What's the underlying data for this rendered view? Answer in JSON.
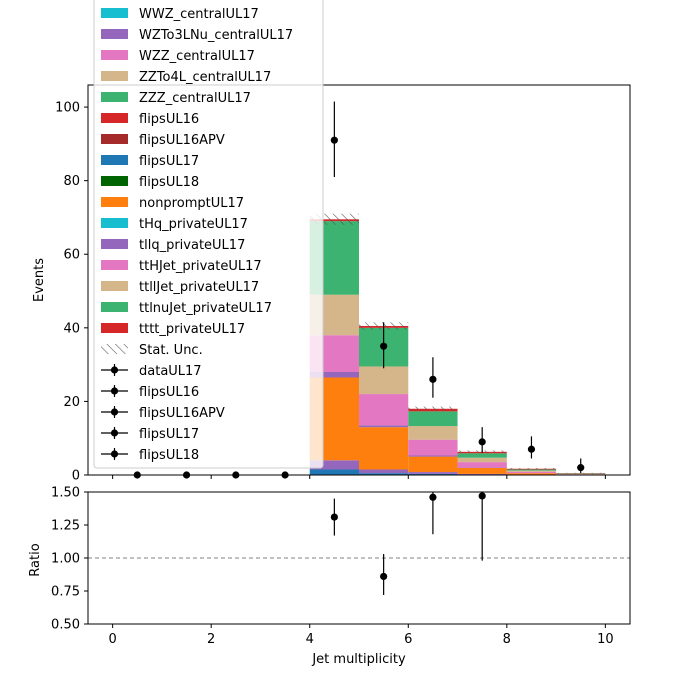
{
  "chart_data": [
    {
      "type": "bar",
      "subtype": "stacked-histogram",
      "ylabel": "Events",
      "xlim": [
        -0.5,
        10.5
      ],
      "ylim": [
        0,
        106
      ],
      "yticks": [
        0,
        20,
        40,
        60,
        80,
        100
      ],
      "bins": [
        [
          0,
          1
        ],
        [
          1,
          2
        ],
        [
          2,
          3
        ],
        [
          3,
          4
        ],
        [
          4,
          5
        ],
        [
          5,
          6
        ],
        [
          6,
          7
        ],
        [
          7,
          8
        ],
        [
          8,
          9
        ],
        [
          9,
          10
        ]
      ],
      "series": [
        {
          "name": "flipsUL17",
          "color": "#1f77b4",
          "values": [
            0,
            0,
            0,
            0,
            1.5,
            0.5,
            0.3,
            0.1,
            0,
            0
          ]
        },
        {
          "name": "tllq_privateUL17",
          "color": "#9467bd",
          "values": [
            0,
            0,
            0,
            0,
            2.5,
            1.0,
            0.5,
            0.2,
            0.1,
            0
          ]
        },
        {
          "name": "nonpromptUL17",
          "color": "#ff7f0e",
          "values": [
            0,
            0,
            0,
            0,
            22.5,
            11.5,
            4.2,
            1.6,
            0.4,
            0.1
          ]
        },
        {
          "name": "WZTo3LNu_centralUL17",
          "color": "#9467bd",
          "values": [
            0,
            0,
            0,
            0,
            1.5,
            0.5,
            0.3,
            0.1,
            0,
            0
          ]
        },
        {
          "name": "ttHJet_privateUL17",
          "color": "#e377c2",
          "values": [
            0,
            0,
            0,
            0,
            10,
            8.5,
            4.3,
            1.5,
            0.4,
            0.1
          ]
        },
        {
          "name": "ttllJet_privateUL17",
          "color": "#d4b68a",
          "values": [
            0,
            0,
            0,
            0,
            11,
            7.5,
            3.7,
            1.2,
            0.3,
            0.1
          ]
        },
        {
          "name": "ttlnuJet_privateUL17",
          "color": "#3cb371",
          "values": [
            0,
            0,
            0,
            0,
            20,
            10.5,
            4.0,
            1.2,
            0.3,
            0.1
          ]
        },
        {
          "name": "tttt_privateUL17",
          "color": "#d62728",
          "values": [
            0,
            0,
            0,
            0,
            0.5,
            0.5,
            0.7,
            0.4,
            0.2,
            0.1
          ]
        }
      ],
      "stat_unc": [
        0,
        0,
        0,
        0,
        1.5,
        1.0,
        0.6,
        0.4,
        0.2,
        0.1
      ],
      "data": {
        "name": "dataUL17",
        "x": [
          0.5,
          1.5,
          2.5,
          3.5,
          4.5,
          5.5,
          6.5,
          7.5,
          8.5,
          9.5
        ],
        "y": [
          0,
          0,
          0,
          0,
          91,
          35,
          26,
          9,
          7,
          2
        ],
        "err_low": [
          0,
          0,
          0,
          0,
          10,
          6,
          5,
          3,
          2.5,
          1.5
        ],
        "err_high": [
          0,
          0,
          0,
          0,
          10.5,
          6.5,
          6,
          4,
          3.5,
          2.5
        ]
      },
      "legend_position": "top-left",
      "legend": [
        {
          "label": "WWZ_centralUL17",
          "kind": "patch",
          "color": "#17becf"
        },
        {
          "label": "WZTo3LNu_centralUL17",
          "kind": "patch",
          "color": "#9467bd"
        },
        {
          "label": "WZZ_centralUL17",
          "kind": "patch",
          "color": "#e377c2"
        },
        {
          "label": "ZZTo4L_centralUL17",
          "kind": "patch",
          "color": "#d4b68a"
        },
        {
          "label": "ZZZ_centralUL17",
          "kind": "patch",
          "color": "#3cb371"
        },
        {
          "label": "flipsUL16",
          "kind": "patch",
          "color": "#d62728"
        },
        {
          "label": "flipsUL16APV",
          "kind": "patch",
          "color": "#a52a2a"
        },
        {
          "label": "flipsUL17",
          "kind": "patch",
          "color": "#1f77b4"
        },
        {
          "label": "flipsUL18",
          "kind": "patch",
          "color": "#006400"
        },
        {
          "label": "nonpromptUL17",
          "kind": "patch",
          "color": "#ff7f0e"
        },
        {
          "label": "tHq_privateUL17",
          "kind": "patch",
          "color": "#17becf"
        },
        {
          "label": "tllq_privateUL17",
          "kind": "patch",
          "color": "#9467bd"
        },
        {
          "label": "ttHJet_privateUL17",
          "kind": "patch",
          "color": "#e377c2"
        },
        {
          "label": "ttllJet_privateUL17",
          "kind": "patch",
          "color": "#d4b68a"
        },
        {
          "label": "ttlnuJet_privateUL17",
          "kind": "patch",
          "color": "#3cb371"
        },
        {
          "label": "tttt_privateUL17",
          "kind": "patch",
          "color": "#d62728"
        },
        {
          "label": "Stat. Unc.",
          "kind": "hatch",
          "color": "#888888"
        },
        {
          "label": "dataUL17",
          "kind": "errorbar",
          "color": "#000000"
        },
        {
          "label": "flipsUL16",
          "kind": "errorbar",
          "color": "#000000"
        },
        {
          "label": "flipsUL16APV",
          "kind": "errorbar",
          "color": "#000000"
        },
        {
          "label": "flipsUL17",
          "kind": "errorbar",
          "color": "#000000"
        },
        {
          "label": "flipsUL18",
          "kind": "errorbar",
          "color": "#000000"
        }
      ]
    },
    {
      "type": "scatter",
      "xlabel": "Jet multiplicity",
      "ylabel": "Ratio",
      "xlim": [
        -0.5,
        10.5
      ],
      "ylim": [
        0.5,
        1.5
      ],
      "xticks": [
        0,
        2,
        4,
        6,
        8,
        10
      ],
      "yticks": [
        "0.50",
        "0.75",
        "1.00",
        "1.25",
        "1.50"
      ],
      "reference_line": 1.0,
      "points": {
        "x": [
          4.5,
          5.5,
          6.5,
          7.5
        ],
        "y": [
          1.31,
          0.86,
          1.46,
          1.47
        ],
        "err_low": [
          0.14,
          0.14,
          0.28,
          0.49
        ],
        "err_high": [
          0.14,
          0.17,
          0.32,
          0.5
        ]
      }
    }
  ]
}
